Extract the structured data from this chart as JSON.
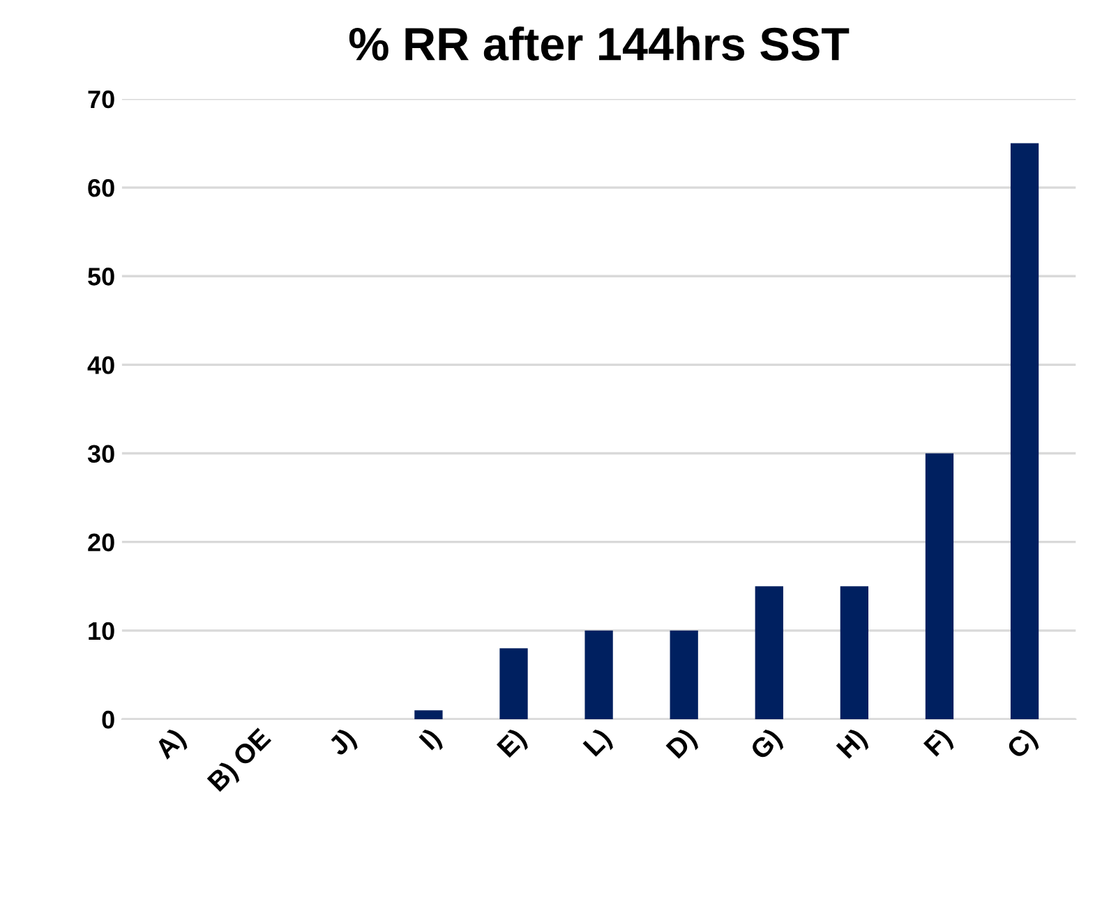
{
  "chart_data": {
    "type": "bar",
    "title": "% RR after 144hrs SST",
    "categories": [
      "A)",
      "B) OE",
      "J)",
      "I)",
      "E)",
      "L)",
      "D)",
      "G)",
      "H)",
      "F)",
      "C)"
    ],
    "values": [
      0,
      0,
      0,
      1,
      8,
      10,
      10,
      15,
      15,
      30,
      65
    ],
    "color": "#002060",
    "ylim": [
      0,
      70
    ],
    "yticks": [
      0,
      10,
      20,
      30,
      40,
      50,
      60,
      70
    ],
    "grid": "y"
  }
}
